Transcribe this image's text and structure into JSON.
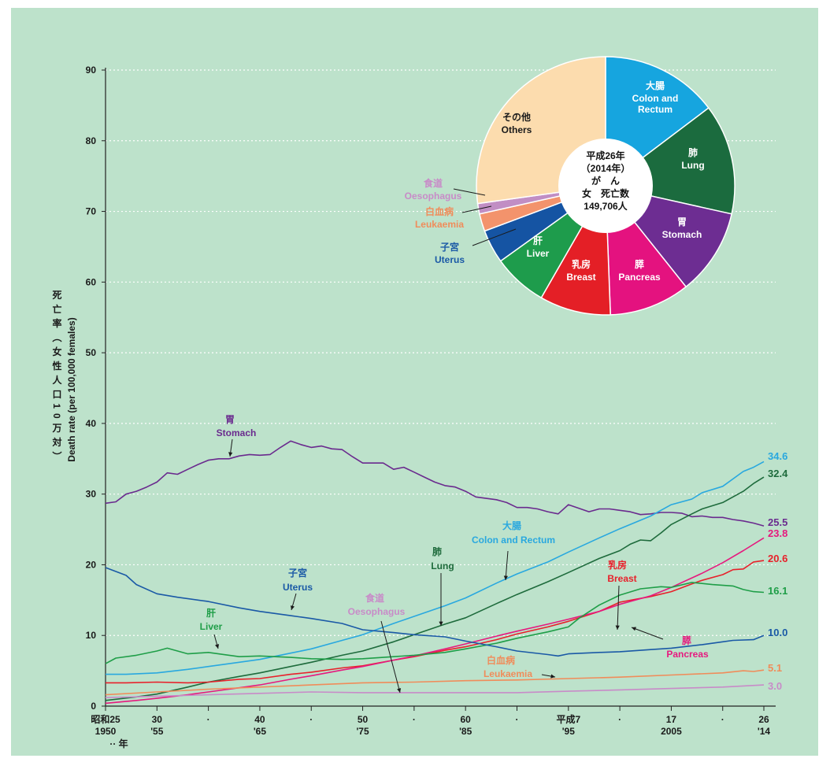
{
  "chart_data": {
    "type": "line",
    "ylabel_ja": "死亡率（女性人口10万対）",
    "ylabel_en": "Death rate (per 100,000 females)",
    "ylim": [
      0,
      90
    ],
    "yticks": [
      "0",
      "10",
      "20",
      "30",
      "40",
      "50",
      "60",
      "70",
      "80",
      "90"
    ],
    "xlim": [
      1950,
      2014
    ],
    "xticks": [
      {
        "x": 1950,
        "top": "昭和25",
        "bottom": "1950"
      },
      {
        "x": 1955,
        "top": "30",
        "bottom": "'55"
      },
      {
        "x": 1960,
        "top": "·",
        "bottom": ""
      },
      {
        "x": 1965,
        "top": "40",
        "bottom": "'65"
      },
      {
        "x": 1970,
        "top": "·",
        "bottom": ""
      },
      {
        "x": 1975,
        "top": "50",
        "bottom": "'75"
      },
      {
        "x": 1980,
        "top": "·",
        "bottom": ""
      },
      {
        "x": 1985,
        "top": "60",
        "bottom": "'85"
      },
      {
        "x": 1990,
        "top": "·",
        "bottom": ""
      },
      {
        "x": 1995,
        "top": "平成7",
        "bottom": "'95"
      },
      {
        "x": 2000,
        "top": "·",
        "bottom": ""
      },
      {
        "x": 2005,
        "top": "17",
        "bottom": "2005"
      },
      {
        "x": 2010,
        "top": "·",
        "bottom": ""
      },
      {
        "x": 2014,
        "top": "26",
        "bottom": "'14"
      }
    ],
    "year_suffix": "年",
    "grid": true,
    "series": [
      {
        "name_ja": "胃",
        "name_en": "Stomach",
        "color": "#6a2a8e",
        "end": "25.5",
        "x": [
          1950,
          1951,
          1952,
          1953,
          1954,
          1955,
          1956,
          1957,
          1958,
          1959,
          1960,
          1961,
          1962,
          1963,
          1964,
          1965,
          1966,
          1967,
          1968,
          1969,
          1970,
          1971,
          1972,
          1973,
          1974,
          1975,
          1976,
          1977,
          1978,
          1979,
          1980,
          1981,
          1982,
          1983,
          1984,
          1985,
          1986,
          1987,
          1988,
          1989,
          1990,
          1991,
          1992,
          1993,
          1994,
          1995,
          1996,
          1997,
          1998,
          1999,
          2000,
          2001,
          2002,
          2003,
          2004,
          2005,
          2006,
          2007,
          2008,
          2009,
          2010,
          2011,
          2012,
          2013,
          2014
        ],
        "y": [
          28.7,
          28.9,
          30.0,
          30.4,
          31.0,
          31.7,
          33.0,
          32.8,
          33.5,
          34.2,
          34.8,
          35.0,
          35.0,
          35.4,
          35.6,
          35.5,
          35.6,
          36.6,
          37.5,
          37.0,
          36.6,
          36.8,
          36.4,
          36.3,
          35.3,
          34.4,
          34.4,
          34.4,
          33.5,
          33.8,
          33.1,
          32.4,
          31.7,
          31.2,
          31.0,
          30.4,
          29.6,
          29.4,
          29.2,
          28.8,
          28.1,
          28.1,
          27.9,
          27.5,
          27.2,
          28.5,
          28.0,
          27.5,
          27.9,
          27.9,
          27.7,
          27.5,
          27.1,
          27.2,
          27.4,
          27.4,
          27.3,
          26.8,
          26.9,
          26.7,
          26.7,
          26.4,
          26.2,
          25.9,
          25.5
        ]
      },
      {
        "name_ja": "大腸",
        "name_en": "Colon and Rectum",
        "color": "#29a8df",
        "end": "34.6",
        "x": [
          1950,
          1952,
          1955,
          1958,
          1960,
          1963,
          1965,
          1968,
          1970,
          1973,
          1975,
          1978,
          1980,
          1983,
          1985,
          1988,
          1990,
          1993,
          1995,
          1998,
          2000,
          2003,
          2005,
          2007,
          2008,
          2010,
          2012,
          2013,
          2014
        ],
        "y": [
          4.5,
          4.5,
          4.7,
          5.2,
          5.6,
          6.2,
          6.6,
          7.5,
          8.1,
          9.3,
          10.1,
          11.7,
          12.7,
          14.2,
          15.3,
          17.4,
          18.7,
          20.4,
          21.8,
          23.8,
          25.1,
          26.9,
          28.5,
          29.3,
          30.2,
          31.1,
          33.2,
          33.8,
          34.6
        ]
      },
      {
        "name_ja": "肺",
        "name_en": "Lung",
        "color": "#1e6b3c",
        "end": "32.4",
        "x": [
          1950,
          1953,
          1955,
          1958,
          1960,
          1963,
          1965,
          1968,
          1970,
          1973,
          1975,
          1978,
          1980,
          1983,
          1985,
          1988,
          1990,
          1993,
          1995,
          1998,
          2000,
          2001,
          2002,
          2003,
          2004,
          2005,
          2007,
          2008,
          2010,
          2012,
          2013,
          2014
        ],
        "y": [
          0.8,
          1.3,
          1.7,
          2.7,
          3.4,
          4.2,
          4.7,
          5.6,
          6.2,
          7.2,
          7.8,
          9.1,
          10.1,
          11.6,
          12.5,
          14.5,
          15.8,
          17.6,
          18.9,
          20.9,
          22.0,
          22.9,
          23.5,
          23.4,
          24.5,
          25.7,
          27.2,
          27.9,
          28.8,
          30.4,
          31.5,
          32.4
        ]
      },
      {
        "name_ja": "乳房",
        "name_en": "Breast",
        "color": "#e8202a",
        "end": "20.6",
        "x": [
          1950,
          1952,
          1955,
          1958,
          1960,
          1963,
          1965,
          1968,
          1970,
          1973,
          1975,
          1978,
          1980,
          1983,
          1985,
          1988,
          1990,
          1993,
          1995,
          1998,
          2000,
          2003,
          2005,
          2007,
          2008,
          2010,
          2011,
          2012,
          2013,
          2014
        ],
        "y": [
          3.3,
          3.3,
          3.4,
          3.3,
          3.4,
          3.8,
          3.9,
          4.5,
          4.8,
          5.4,
          5.7,
          6.5,
          7.0,
          7.9,
          8.4,
          9.4,
          10.2,
          11.2,
          12.0,
          13.4,
          14.7,
          15.5,
          16.2,
          17.3,
          17.8,
          18.6,
          19.3,
          19.4,
          20.4,
          20.6
        ]
      },
      {
        "name_ja": "膵",
        "name_en": "Pancreas",
        "color": "#e6197e",
        "end": "23.8",
        "x": [
          1950,
          1953,
          1955,
          1958,
          1960,
          1963,
          1965,
          1968,
          1970,
          1973,
          1975,
          1978,
          1980,
          1983,
          1985,
          1988,
          1990,
          1993,
          1995,
          1998,
          2000,
          2003,
          2005,
          2008,
          2010,
          2012,
          2014
        ],
        "y": [
          0.4,
          0.8,
          1.1,
          1.6,
          2.0,
          2.6,
          3.0,
          3.8,
          4.3,
          5.1,
          5.6,
          6.5,
          7.1,
          8.1,
          8.8,
          9.9,
          10.6,
          11.6,
          12.3,
          13.4,
          14.4,
          15.6,
          16.8,
          18.8,
          20.3,
          22.0,
          23.8
        ]
      },
      {
        "name_ja": "肝",
        "name_en": "Liver",
        "color": "#1f9e48",
        "end": "16.1",
        "x": [
          1950,
          1951,
          1953,
          1955,
          1956,
          1958,
          1960,
          1963,
          1965,
          1968,
          1970,
          1973,
          1975,
          1978,
          1980,
          1983,
          1985,
          1988,
          1990,
          1993,
          1995,
          1996,
          1998,
          2000,
          2002,
          2004,
          2005,
          2007,
          2009,
          2011,
          2012,
          2013,
          2014
        ],
        "y": [
          6.0,
          6.8,
          7.2,
          7.8,
          8.2,
          7.4,
          7.6,
          7.0,
          7.1,
          6.9,
          6.7,
          6.6,
          6.7,
          7.0,
          7.2,
          7.6,
          8.1,
          8.9,
          9.6,
          10.5,
          11.2,
          12.4,
          14.3,
          15.7,
          16.6,
          16.9,
          16.8,
          17.5,
          17.2,
          17.0,
          16.5,
          16.2,
          16.1
        ]
      },
      {
        "name_ja": "子宮",
        "name_en": "Uterus",
        "color": "#1a59a6",
        "end": "10.0",
        "x": [
          1950,
          1952,
          1953,
          1955,
          1957,
          1960,
          1963,
          1965,
          1968,
          1970,
          1973,
          1975,
          1978,
          1980,
          1983,
          1985,
          1988,
          1990,
          1993,
          1994,
          1995,
          1998,
          2000,
          2003,
          2005,
          2008,
          2010,
          2011,
          2013,
          2014
        ],
        "y": [
          19.6,
          18.5,
          17.2,
          15.9,
          15.4,
          14.8,
          13.9,
          13.4,
          12.8,
          12.4,
          11.7,
          10.8,
          10.4,
          10.1,
          9.8,
          9.2,
          8.4,
          7.8,
          7.3,
          7.1,
          7.4,
          7.6,
          7.7,
          8.0,
          8.2,
          8.7,
          9.1,
          9.3,
          9.4,
          10.0
        ]
      },
      {
        "name_ja": "白血病",
        "name_en": "Leukaemia",
        "color": "#f08c5a",
        "end": "5.1",
        "x": [
          1950,
          1955,
          1960,
          1965,
          1970,
          1975,
          1980,
          1985,
          1990,
          1995,
          2000,
          2005,
          2010,
          2012,
          2013,
          2014
        ],
        "y": [
          1.6,
          2.0,
          2.4,
          2.7,
          3.0,
          3.3,
          3.4,
          3.6,
          3.7,
          3.9,
          4.1,
          4.4,
          4.7,
          5.0,
          4.9,
          5.1
        ]
      },
      {
        "name_ja": "食道",
        "name_en": "Oesophagus",
        "color": "#c88bc8",
        "end": "3.0",
        "x": [
          1950,
          1955,
          1960,
          1965,
          1970,
          1975,
          1980,
          1985,
          1990,
          1995,
          2000,
          2005,
          2010,
          2014
        ],
        "y": [
          1.2,
          1.4,
          1.6,
          1.8,
          2.0,
          1.9,
          1.9,
          1.9,
          1.9,
          2.1,
          2.3,
          2.5,
          2.7,
          3.0
        ]
      }
    ],
    "pie": {
      "type": "pie",
      "center_text": [
        "平成26年",
        "（2014年）",
        "が　ん",
        "女　死亡数",
        "149,706人"
      ],
      "slices": [
        {
          "name_ja": "大腸",
          "name_en": "Colon and Rectum",
          "value": 14.7,
          "color": "#16a5df"
        },
        {
          "name_ja": "肺",
          "name_en": "Lung",
          "value": 13.8,
          "color": "#1b6b3e"
        },
        {
          "name_ja": "胃",
          "name_en": "Stomach",
          "value": 10.8,
          "color": "#6d2d92"
        },
        {
          "name_ja": "膵",
          "name_en": "Pancreas",
          "value": 10.1,
          "color": "#e4127f"
        },
        {
          "name_ja": "乳房",
          "name_en": "Breast",
          "value": 8.9,
          "color": "#e41f26"
        },
        {
          "name_ja": "肝",
          "name_en": "Liver",
          "value": 6.8,
          "color": "#1e9c4c"
        },
        {
          "name_ja": "子宮",
          "name_en": "Uterus",
          "value": 4.2,
          "color": "#1554a3"
        },
        {
          "name_ja": "白血病",
          "name_en": "Leukaemia",
          "value": 2.2,
          "color": "#f3936c"
        },
        {
          "name_ja": "食道",
          "name_en": "Oesophagus",
          "value": 1.3,
          "color": "#c18ec4"
        },
        {
          "name_ja": "その他",
          "name_en": "Others",
          "value": 27.2,
          "color": "#fcdcae"
        }
      ]
    }
  }
}
